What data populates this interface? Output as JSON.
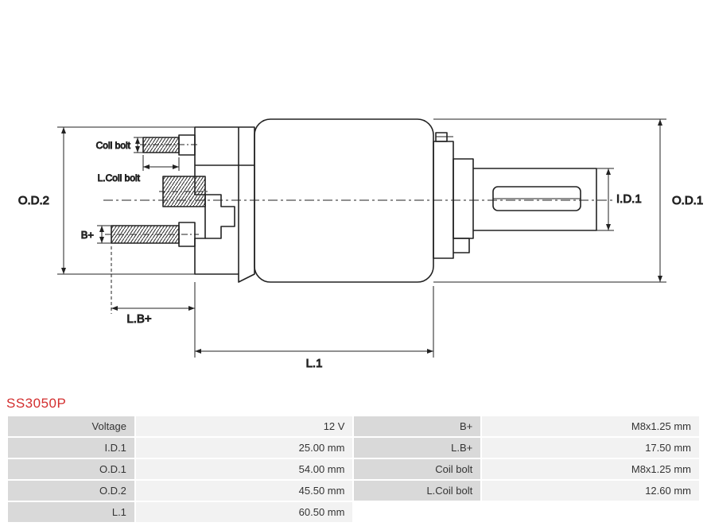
{
  "part_number": "SS3050P",
  "title_color": "#d32f2f",
  "diagram": {
    "stroke": "#222222",
    "stroke_width": 1.6,
    "thin_stroke_width": 1,
    "text_color": "#222222",
    "font_size": 15,
    "font_size_small": 12,
    "labels": {
      "od2": "O.D.2",
      "od1": "O.D.1",
      "id1": "I.D.1",
      "l1": "L.1",
      "lb_plus": "L.B+",
      "b_plus": "B+",
      "coil_bolt": "Coil bolt",
      "l_coil_bolt": "L.Coil bolt"
    }
  },
  "table": {
    "bg_key": "#d9d9d9",
    "bg_val": "#f2f2f2",
    "text_color": "#333333",
    "rows": [
      {
        "k1": "Voltage",
        "v1": "12 V",
        "k2": "B+",
        "v2": "M8x1.25 mm"
      },
      {
        "k1": "I.D.1",
        "v1": "25.00 mm",
        "k2": "L.B+",
        "v2": "17.50 mm"
      },
      {
        "k1": "O.D.1",
        "v1": "54.00 mm",
        "k2": "Coil bolt",
        "v2": "M8x1.25 mm"
      },
      {
        "k1": "O.D.2",
        "v1": "45.50 mm",
        "k2": "L.Coil bolt",
        "v2": "12.60 mm"
      },
      {
        "k1": "L.1",
        "v1": "60.50 mm",
        "k2": "",
        "v2": ""
      }
    ]
  }
}
